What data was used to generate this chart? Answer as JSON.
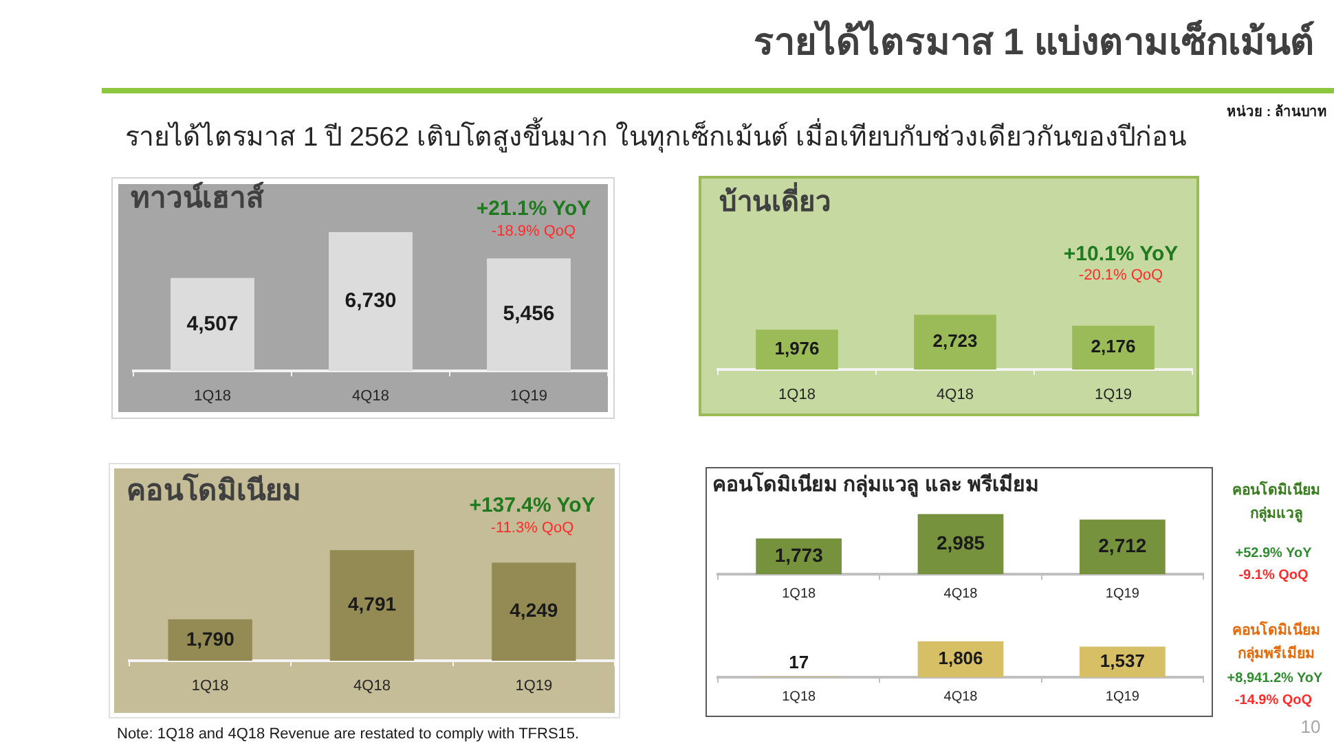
{
  "chart_data": [
    {
      "type": "other",
      "title": "รายได้ไตรมาส 1 แบ่งตามเซ็กเม้นต์",
      "subtitle": "รายได้ไตรมาส 1 ปี 2562 เติบโตสูงขึ้นมาก ในทุกเซ็กเม้นต์ เมื่อเทียบกับช่วงเดียวกันของปีก่อน",
      "annotations": [
        "หน่วย : ล้านบาท",
        "Note: 1Q18 and 4Q18 Revenue are restated to comply with TFRS15.",
        "10"
      ]
    },
    {
      "type": "bar",
      "title": "ทาวน์เฮาส์",
      "categories": [
        "1Q18",
        "4Q18",
        "1Q19"
      ],
      "values": [
        4507,
        6730,
        5456
      ],
      "value_labels": [
        "4,507",
        "6,730",
        "5,456"
      ],
      "color": "#dcdcdc",
      "tick_labels": "x",
      "annotations": [
        "+21.1% YoY",
        "-18.9% QoQ"
      ]
    },
    {
      "type": "bar",
      "title": "บ้านเดี่ยว",
      "categories": [
        "1Q18",
        "4Q18",
        "1Q19"
      ],
      "values": [
        1976,
        2723,
        2176
      ],
      "value_labels": [
        "1,976",
        "2,723",
        "2,176"
      ],
      "color": "#9bbb59",
      "tick_labels": "x",
      "annotations": [
        "+10.1% YoY",
        "-20.1% QoQ"
      ]
    },
    {
      "type": "bar",
      "title": "คอนโดมิเนียม",
      "categories": [
        "1Q18",
        "4Q18",
        "1Q19"
      ],
      "values": [
        1790,
        4791,
        4249
      ],
      "value_labels": [
        "1,790",
        "4,791",
        "4,249"
      ],
      "color": "#948a54",
      "tick_labels": "x",
      "annotations": [
        "+137.4% YoY",
        "-11.3% QoQ"
      ]
    },
    {
      "type": "bar",
      "title": "คอนโดมิเนียม กลุ่มแวลู และ พรีเมียม",
      "categories": [
        "1Q18",
        "4Q18",
        "1Q19"
      ],
      "values": [
        1773,
        2985,
        2712
      ],
      "value_labels": [
        "1,773",
        "2,985",
        "2,712"
      ],
      "color": "#76923c",
      "tick_labels": "x",
      "annotations": [
        "คอนโดมิเนียม กลุ่มแวลู",
        "+52.9% YoY",
        "-9.1% QoQ"
      ]
    },
    {
      "type": "bar",
      "categories": [
        "1Q18",
        "4Q18",
        "1Q19"
      ],
      "values": [
        17,
        1806,
        1537
      ],
      "value_labels": [
        "17",
        "1,806",
        "1,537"
      ],
      "color": "#d7bf66",
      "tick_labels": "x",
      "annotations": [
        "คอนโดมิเนียม กลุ่มพรีเมียม",
        "+8,941.2% YoY",
        "-14.9% QoQ"
      ]
    }
  ]
}
